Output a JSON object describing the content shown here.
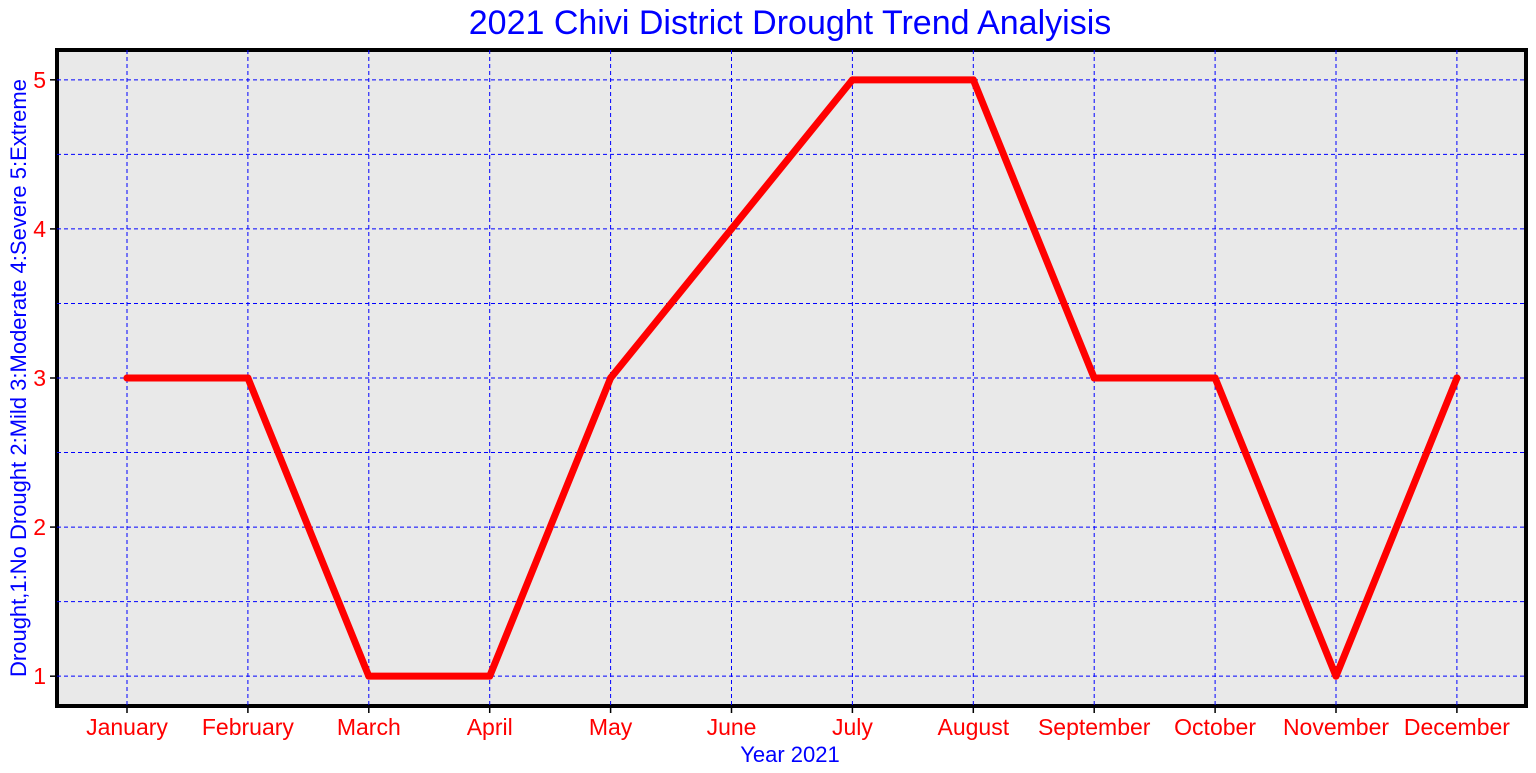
{
  "chart_data": {
    "type": "line",
    "title": "2021 Chivi District Drought Trend Analyisis",
    "xlabel": "Year 2021",
    "ylabel": "Drought,1:No Drought 2:Mild 3:Moderate 4:Severe 5:Extreme",
    "categories": [
      "January",
      "February",
      "March",
      "April",
      "May",
      "June",
      "July",
      "August",
      "September",
      "October",
      "November",
      "December"
    ],
    "series": [
      {
        "values": [
          3,
          3,
          1,
          1,
          3,
          4,
          5,
          5,
          3,
          3,
          1,
          3
        ]
      }
    ],
    "ylim": [
      0.8,
      5.2
    ],
    "yticks": [
      "1",
      "2",
      "3",
      "4",
      "5"
    ],
    "grid": true,
    "colors": {
      "line": "#ff0000",
      "grid": "#0000ff",
      "plot_bg": "#e9e9e9",
      "title": "#0000ff",
      "ticks": "#ff0000"
    }
  }
}
